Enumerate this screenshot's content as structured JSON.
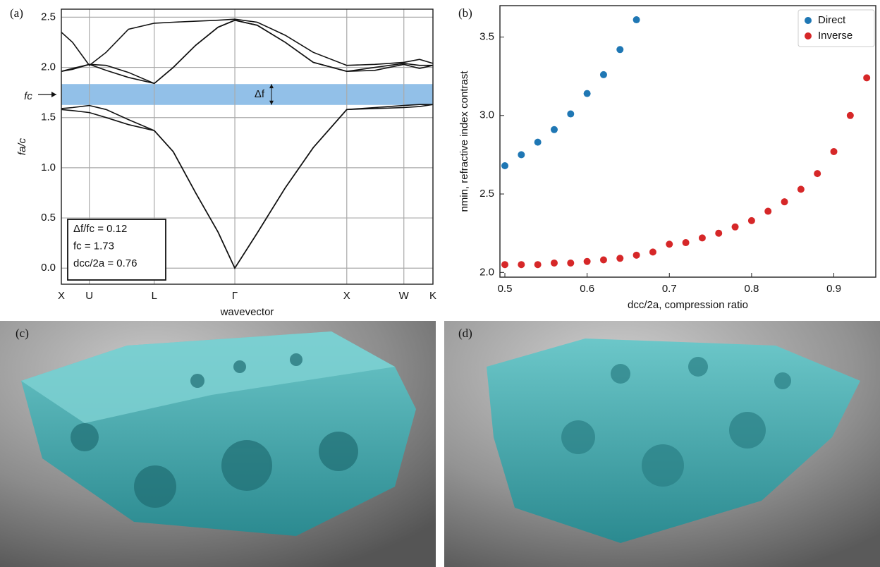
{
  "chart_data": [
    {
      "type": "line",
      "label": "(a)",
      "xlabel": "wavevector",
      "ylabel": "fa/c",
      "x": [
        0,
        0.1,
        0.25,
        0.4,
        0.6,
        0.83,
        1.0,
        1.2,
        1.4,
        1.55,
        1.75,
        2.0,
        2.25,
        2.55,
        2.8,
        3.06,
        3.2,
        3.32
      ],
      "series": [
        {
          "color": "#111111",
          "values": [
            1.58,
            1.57,
            1.55,
            1.5,
            1.43,
            1.37,
            1.16,
            0.75,
            0.36,
            0,
            0.35,
            0.8,
            1.2,
            1.58,
            1.6,
            1.62,
            1.63,
            1.63
          ]
        },
        {
          "color": "#111111",
          "values": [
            1.59,
            1.6,
            1.62,
            1.58,
            1.48,
            1.37,
            1.16,
            0.75,
            0.36,
            0,
            0.35,
            0.8,
            1.2,
            1.58,
            1.59,
            1.6,
            1.61,
            1.63
          ]
        },
        {
          "color": "#111111",
          "values": [
            1.96,
            1.98,
            2.03,
            1.97,
            1.9,
            1.84,
            2.0,
            2.22,
            2.4,
            2.47,
            2.42,
            2.25,
            2.05,
            1.96,
            1.97,
            2.03,
            1.99,
            2.02
          ]
        },
        {
          "color": "#111111",
          "values": [
            1.96,
            1.99,
            2.03,
            2.02,
            1.95,
            1.84,
            2.0,
            2.22,
            2.4,
            2.47,
            2.42,
            2.25,
            2.05,
            1.96,
            2.0,
            2.04,
            2.02,
            2.02
          ]
        },
        {
          "color": "#111111",
          "values": [
            2.35,
            2.25,
            2.02,
            2.15,
            2.38,
            2.44,
            2.45,
            2.46,
            2.47,
            2.48,
            2.45,
            2.32,
            2.15,
            2.02,
            2.03,
            2.05,
            2.08,
            2.04
          ]
        }
      ],
      "band_gap": [
        1.626,
        1.834
      ],
      "band_gap_color": "#92c0e8",
      "xlim": [
        0,
        3.32
      ],
      "ylim": [
        -0.16,
        2.58
      ],
      "xticks": [
        {
          "value": 0,
          "label": "X"
        },
        {
          "value": 0.25,
          "label": "U"
        },
        {
          "value": 0.83,
          "label": "L"
        },
        {
          "value": 1.55,
          "label": "Γ"
        },
        {
          "value": 2.55,
          "label": "X"
        },
        {
          "value": 3.06,
          "label": "W"
        },
        {
          "value": 3.32,
          "label": "K"
        }
      ],
      "yticks": [
        {
          "value": 0,
          "label": "0.0"
        },
        0.5,
        {
          "value": 1,
          "label": "1.0"
        },
        1.5,
        {
          "value": 2,
          "label": "2.0"
        },
        2.5
      ],
      "grid": true,
      "annotations": {
        "delta_f": "Δf",
        "f_c": "fc",
        "box": [
          "Δf/fc = 0.12",
          "fc = 1.73",
          "dcc/2a = 0.76"
        ]
      }
    },
    {
      "type": "scatter",
      "label": "(b)",
      "xlabel": "dcc/2a, compression ratio",
      "ylabel": "nmin, refractive index contrast",
      "series": [
        {
          "name": "Direct",
          "color": "#1f77b4",
          "x": [
            0.5,
            0.52,
            0.54,
            0.56,
            0.58,
            0.6,
            0.62,
            0.64,
            0.66
          ],
          "values": [
            2.68,
            2.75,
            2.83,
            2.91,
            3.01,
            3.14,
            3.26,
            3.42,
            3.61
          ]
        },
        {
          "name": "Inverse",
          "color": "#d62728",
          "x": [
            0.5,
            0.52,
            0.54,
            0.56,
            0.58,
            0.6,
            0.62,
            0.64,
            0.66,
            0.68,
            0.7,
            0.72,
            0.74,
            0.76,
            0.78,
            0.8,
            0.82,
            0.84,
            0.86,
            0.88,
            0.9,
            0.92,
            0.94
          ],
          "values": [
            2.05,
            2.05,
            2.05,
            2.06,
            2.06,
            2.07,
            2.08,
            2.09,
            2.11,
            2.13,
            2.18,
            2.19,
            2.22,
            2.25,
            2.29,
            2.33,
            2.39,
            2.45,
            2.53,
            2.63,
            2.77,
            3.0,
            3.24
          ]
        }
      ],
      "xlim": [
        0.494,
        0.951
      ],
      "ylim": [
        1.97,
        3.7
      ],
      "xticks": [
        0.5,
        0.6,
        0.7,
        0.8,
        0.9
      ],
      "yticks": [
        {
          "value": 2,
          "label": "2.0"
        },
        2.5,
        {
          "value": 3,
          "label": "3.0"
        },
        3.5
      ],
      "grid": false,
      "legend": "upper right"
    }
  ],
  "images": [
    {
      "label": "(c)"
    },
    {
      "label": "(d)"
    }
  ]
}
